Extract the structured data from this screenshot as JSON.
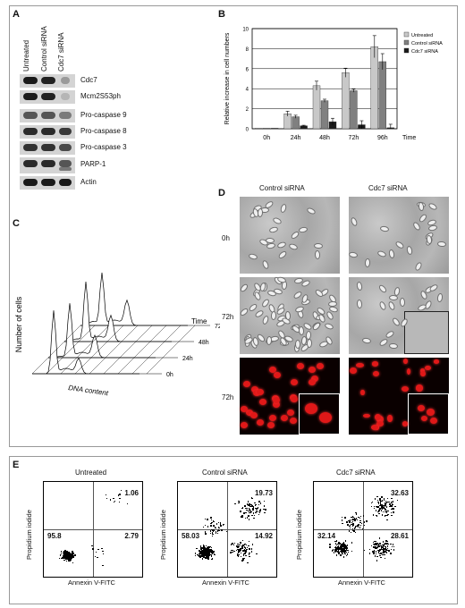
{
  "panels": {
    "A": "A",
    "B": "B",
    "C": "C",
    "D": "D",
    "E": "E"
  },
  "blot": {
    "columns": [
      "Untreated",
      "Control siRNA",
      "Cdc7 siRNA"
    ],
    "rows": [
      "Cdc7",
      "Mcm2S53ph",
      "Pro-caspase 9",
      "Pro-caspase 8",
      "Pro-caspase 3",
      "PARP-1",
      "Actin"
    ]
  },
  "chart_data": {
    "type": "bar",
    "categories": [
      "0h",
      "24h",
      "48h",
      "72h",
      "96h"
    ],
    "xlabel": "Time",
    "ylabel": "Relative increase in cell numbers",
    "ylim": [
      0,
      10
    ],
    "grid": true,
    "legend_position": "top-right",
    "series": [
      {
        "name": "Untreated",
        "color": "#c8c8c8",
        "values": [
          0,
          1.5,
          4.3,
          5.6,
          8.2
        ],
        "errors": [
          0,
          0.25,
          0.45,
          0.45,
          1.1
        ]
      },
      {
        "name": "Control siRNA",
        "color": "#808080",
        "values": [
          0,
          1.2,
          2.8,
          3.8,
          6.7
        ],
        "errors": [
          0,
          0.15,
          0.15,
          0.15,
          0.8
        ]
      },
      {
        "name": "Cdc7 siRNA",
        "color": "#1a1a1a",
        "values": [
          0,
          0.3,
          0.7,
          0.4,
          0.1
        ],
        "errors": [
          0,
          0.05,
          0.35,
          0.4,
          0.35
        ]
      }
    ]
  },
  "flow": {
    "ylabel": "Number of cells",
    "xlabel": "DNA content",
    "zlabel": "Time",
    "timepoints": [
      "0h",
      "24h",
      "48h",
      "72h"
    ]
  },
  "micro": {
    "columns": [
      "Control siRNA",
      "Cdc7 siRNA"
    ],
    "rows": [
      "0h",
      "72h",
      "72h"
    ]
  },
  "facs": {
    "xlabel": "Annexin V-FITC",
    "ylabel": "Propidium iodide",
    "plots": [
      {
        "title": "Untreated",
        "ur": "1.06",
        "ll": "95.8",
        "lr": "2.79",
        "ul": ""
      },
      {
        "title": "Control siRNA",
        "ur": "19.73",
        "ll": "58.03",
        "lr": "14.92",
        "ul": ""
      },
      {
        "title": "Cdc7 siRNA",
        "ur": "32.63",
        "ll": "32.14",
        "lr": "28.61",
        "ul": ""
      }
    ]
  }
}
